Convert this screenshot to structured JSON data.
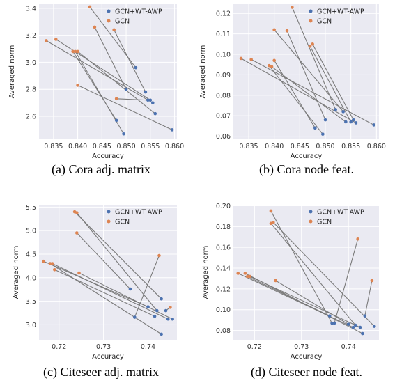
{
  "colors": {
    "series_a": "#4c72b0",
    "series_b": "#dd8452",
    "pair_line": "#7a7a7a",
    "grid": "#ffffff",
    "plot_bg": "#eaeaf2"
  },
  "chart_data": [
    {
      "type": "scatter",
      "caption": "(a)  Cora adj. matrix",
      "xlabel": "Accuracy",
      "ylabel": "Averaged norm",
      "xlim": [
        0.832,
        0.8605
      ],
      "ylim": [
        2.43,
        3.43
      ],
      "xticks": [
        0.835,
        0.84,
        0.845,
        0.85,
        0.855,
        0.86
      ],
      "yticks": [
        2.6,
        2.8,
        3.0,
        3.2,
        3.4
      ],
      "xtick_labels": [
        "0.835",
        "0.840",
        "0.845",
        "0.850",
        "0.855",
        "0.860"
      ],
      "ytick_labels": [
        "2.6",
        "2.8",
        "3.0",
        "3.2",
        "3.4"
      ],
      "legend": [
        "GCN+WT-AWP",
        "GCN"
      ],
      "series": [
        {
          "name": "GCN+WT-AWP",
          "points": [
            [
              0.852,
              2.96
            ],
            [
              0.85,
              2.8
            ],
            [
              0.854,
              2.78
            ],
            [
              0.855,
              2.72
            ],
            [
              0.8555,
              2.7
            ],
            [
              0.848,
              2.57
            ],
            [
              0.8495,
              2.47
            ],
            [
              0.856,
              2.62
            ],
            [
              0.8595,
              2.5
            ],
            [
              0.8545,
              2.72
            ]
          ]
        },
        {
          "name": "GCN",
          "points": [
            [
              0.8425,
              3.41
            ],
            [
              0.8435,
              3.26
            ],
            [
              0.8475,
              3.24
            ],
            [
              0.8355,
              3.17
            ],
            [
              0.8335,
              3.16
            ],
            [
              0.839,
              3.08
            ],
            [
              0.8395,
              3.08
            ],
            [
              0.84,
              3.08
            ],
            [
              0.84,
              2.83
            ],
            [
              0.848,
              2.73
            ]
          ]
        }
      ],
      "pairs": [
        [
          0,
          0
        ],
        [
          1,
          1
        ],
        [
          2,
          2
        ],
        [
          3,
          3
        ],
        [
          4,
          4
        ],
        [
          5,
          5
        ],
        [
          6,
          6
        ],
        [
          7,
          7
        ],
        [
          8,
          8
        ],
        [
          9,
          9
        ]
      ]
    },
    {
      "type": "scatter",
      "caption": "(b)  Cora node feat.",
      "xlabel": "Accuracy",
      "ylabel": "Averaged norm",
      "xlim": [
        0.832,
        0.8605
      ],
      "ylim": [
        0.0585,
        0.1245
      ],
      "xticks": [
        0.835,
        0.84,
        0.845,
        0.85,
        0.855,
        0.86
      ],
      "yticks": [
        0.06,
        0.07,
        0.08,
        0.09,
        0.1,
        0.11,
        0.12
      ],
      "xtick_labels": [
        "0.835",
        "0.840",
        "0.845",
        "0.850",
        "0.855",
        "0.860"
      ],
      "ytick_labels": [
        "0.06",
        "0.07",
        "0.08",
        "0.09",
        "0.10",
        "0.11",
        "0.12"
      ],
      "legend": [
        "GCN+WT-AWP",
        "GCN"
      ],
      "series": [
        {
          "name": "GCN+WT-AWP",
          "points": [
            [
              0.852,
              0.073
            ],
            [
              0.8535,
              0.072
            ],
            [
              0.855,
              0.067
            ],
            [
              0.8555,
              0.068
            ],
            [
              0.856,
              0.0665
            ],
            [
              0.85,
              0.068
            ],
            [
              0.848,
              0.064
            ],
            [
              0.8495,
              0.061
            ],
            [
              0.854,
              0.067
            ],
            [
              0.8595,
              0.0655
            ]
          ]
        },
        {
          "name": "GCN",
          "points": [
            [
              0.8435,
              0.123
            ],
            [
              0.84,
              0.112
            ],
            [
              0.8425,
              0.1115
            ],
            [
              0.847,
              0.104
            ],
            [
              0.8475,
              0.105
            ],
            [
              0.8335,
              0.098
            ],
            [
              0.8355,
              0.0975
            ],
            [
              0.84,
              0.097
            ],
            [
              0.839,
              0.0945
            ],
            [
              0.8395,
              0.094
            ]
          ]
        }
      ],
      "pairs": [
        [
          0,
          0
        ],
        [
          1,
          1
        ],
        [
          2,
          3
        ],
        [
          3,
          4
        ],
        [
          4,
          5
        ],
        [
          5,
          2
        ],
        [
          6,
          7
        ],
        [
          7,
          8
        ],
        [
          8,
          9
        ],
        [
          9,
          6
        ]
      ]
    },
    {
      "type": "scatter",
      "caption": "(c)  Citeseer adj. matrix",
      "xlabel": "Accuracy",
      "ylabel": "Averaged norm",
      "xlim": [
        0.7155,
        0.7465
      ],
      "ylim": [
        2.68,
        5.55
      ],
      "xticks": [
        0.72,
        0.73,
        0.74
      ],
      "yticks": [
        3.0,
        3.5,
        4.0,
        4.5,
        5.0,
        5.5
      ],
      "xtick_labels": [
        "0.72",
        "0.73",
        "0.74"
      ],
      "ytick_labels": [
        "3.0",
        "3.5",
        "4.0",
        "4.5",
        "5.0",
        "5.5"
      ],
      "legend": [
        "GCN+WT-AWP",
        "GCN"
      ],
      "series": [
        {
          "name": "GCN+WT-AWP",
          "points": [
            [
              0.743,
              3.55
            ],
            [
              0.742,
              3.3
            ],
            [
              0.736,
              3.76
            ],
            [
              0.74,
              3.38
            ],
            [
              0.7445,
              3.12
            ],
            [
              0.7455,
              3.12
            ],
            [
              0.7415,
              3.18
            ],
            [
              0.737,
              3.16
            ],
            [
              0.744,
              3.3
            ],
            [
              0.743,
              2.8
            ]
          ]
        },
        {
          "name": "GCN",
          "points": [
            [
              0.7235,
              5.4
            ],
            [
              0.724,
              4.95
            ],
            [
              0.7425,
              4.47
            ],
            [
              0.7165,
              4.35
            ],
            [
              0.718,
              4.3
            ],
            [
              0.7185,
              4.3
            ],
            [
              0.719,
              4.17
            ],
            [
              0.7245,
              4.1
            ],
            [
              0.745,
              3.37
            ],
            [
              0.724,
              5.38
            ]
          ]
        }
      ],
      "pairs": [
        [
          0,
          0
        ],
        [
          1,
          9
        ],
        [
          2,
          1
        ],
        [
          3,
          3
        ],
        [
          4,
          5
        ],
        [
          5,
          7
        ],
        [
          6,
          6
        ],
        [
          7,
          2
        ],
        [
          8,
          8
        ],
        [
          9,
          4
        ]
      ]
    },
    {
      "type": "scatter",
      "caption": "(d)  Citeseer node feat.",
      "xlabel": "Accuracy",
      "ylabel": "Averaged norm",
      "xlim": [
        0.7155,
        0.7465
      ],
      "ylim": [
        0.071,
        0.201
      ],
      "xticks": [
        0.72,
        0.73,
        0.74
      ],
      "yticks": [
        0.08,
        0.1,
        0.12,
        0.14,
        0.16,
        0.18,
        0.2
      ],
      "xtick_labels": [
        "0.72",
        "0.73",
        "0.74"
      ],
      "ytick_labels": [
        "0.08",
        "0.10",
        "0.12",
        "0.14",
        "0.16",
        "0.18",
        "0.20"
      ],
      "legend": [
        "GCN+WT-AWP",
        "GCN"
      ],
      "series": [
        {
          "name": "GCN+WT-AWP",
          "points": [
            [
              0.7435,
              0.094
            ],
            [
              0.736,
              0.094
            ],
            [
              0.7365,
              0.087
            ],
            [
              0.737,
              0.087
            ],
            [
              0.7415,
              0.085
            ],
            [
              0.7425,
              0.083
            ],
            [
              0.741,
              0.083
            ],
            [
              0.7455,
              0.084
            ],
            [
              0.743,
              0.077
            ],
            [
              0.74,
              0.086
            ]
          ]
        },
        {
          "name": "GCN",
          "points": [
            [
              0.7235,
              0.195
            ],
            [
              0.7235,
              0.183
            ],
            [
              0.724,
              0.184
            ],
            [
              0.742,
              0.168
            ],
            [
              0.745,
              0.128
            ],
            [
              0.7245,
              0.128
            ],
            [
              0.7165,
              0.135
            ],
            [
              0.718,
              0.135
            ],
            [
              0.7185,
              0.132
            ],
            [
              0.719,
              0.132
            ]
          ]
        }
      ],
      "pairs": [
        [
          0,
          4
        ],
        [
          1,
          8
        ],
        [
          2,
          0
        ],
        [
          3,
          3
        ],
        [
          4,
          1
        ],
        [
          5,
          9
        ],
        [
          6,
          6
        ],
        [
          7,
          2
        ],
        [
          8,
          7
        ],
        [
          9,
          5
        ]
      ]
    }
  ]
}
